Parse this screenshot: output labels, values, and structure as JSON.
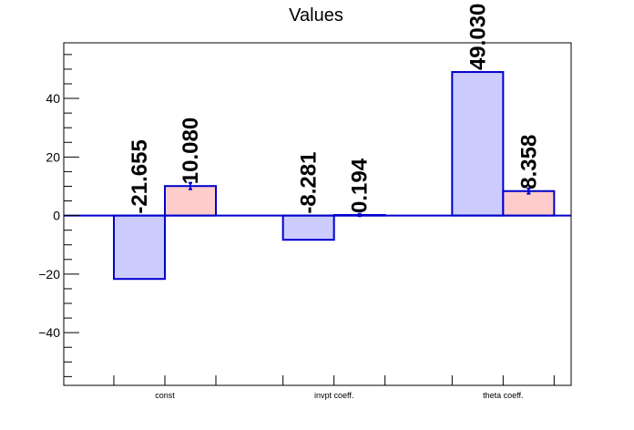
{
  "chart_data": {
    "type": "bar",
    "title": "Values",
    "xlabel": "",
    "ylabel": "",
    "categories": [
      "const",
      "invpt coeff.",
      "theta coeff."
    ],
    "series": [
      {
        "values": [
          -21.655,
          -8.281,
          49.03
        ],
        "errors": [
          0,
          0,
          0
        ]
      },
      {
        "values": [
          10.08,
          0.194,
          8.358
        ],
        "errors": [
          1.1,
          0.4,
          0.9
        ]
      }
    ],
    "value_labels": [
      [
        "-21.655",
        "-8.281",
        "49.030"
      ],
      [
        "10.080",
        "0.194",
        "8.358"
      ]
    ],
    "ylim": [
      -58,
      59
    ],
    "yticks": [
      -40,
      -20,
      0,
      20,
      40
    ],
    "grid": false,
    "colors": {
      "series_fill": [
        "#ccccff",
        "#ffcccc"
      ],
      "outline": "#0000cc",
      "axis": "#000000"
    }
  }
}
